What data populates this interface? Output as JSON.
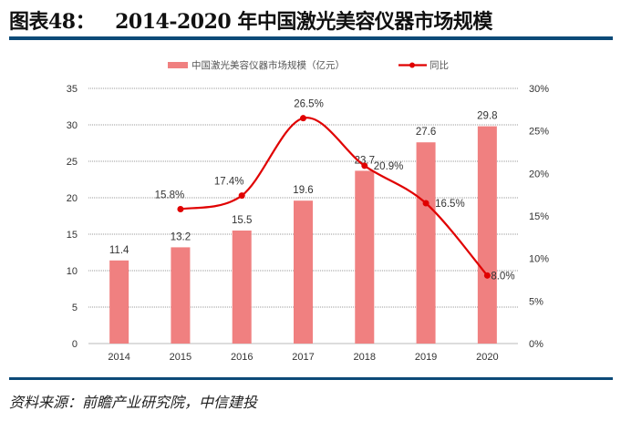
{
  "header": {
    "label": "图表48：",
    "title": "2014-2020 年中国激光美容仪器市场规模"
  },
  "source": "资料来源：前瞻产业研究院，中信建投",
  "chart_data": {
    "type": "bar+line",
    "categories": [
      "2014",
      "2015",
      "2016",
      "2017",
      "2018",
      "2019",
      "2020"
    ],
    "series": [
      {
        "name": "中国激光美容仪器市场规模（亿元）",
        "type": "bar",
        "axis": "left",
        "color": "#f08080",
        "values": [
          11.4,
          13.2,
          15.5,
          19.6,
          23.7,
          27.6,
          29.8
        ],
        "labels": [
          "11.4",
          "13.2",
          "15.5",
          "19.6",
          "23.7",
          "27.6",
          "29.8"
        ]
      },
      {
        "name": "同比",
        "type": "line",
        "axis": "right",
        "color": "#e00000",
        "smooth": true,
        "values": [
          null,
          15.8,
          17.4,
          26.5,
          20.9,
          16.5,
          8.0
        ],
        "labels": [
          "",
          "15.8%",
          "17.4%",
          "26.5%",
          "20.9%",
          "16.5%",
          "8.0%"
        ]
      }
    ],
    "left_axis": {
      "ylim": [
        0,
        35
      ],
      "ticks": [
        "0",
        "5",
        "10",
        "15",
        "20",
        "25",
        "30",
        "35"
      ]
    },
    "right_axis": {
      "ylim": [
        0,
        30
      ],
      "ticks": [
        "0%",
        "5%",
        "10%",
        "15%",
        "20%",
        "25%",
        "30%"
      ]
    },
    "grid": "horizontal dotted",
    "legend": "top-center"
  }
}
